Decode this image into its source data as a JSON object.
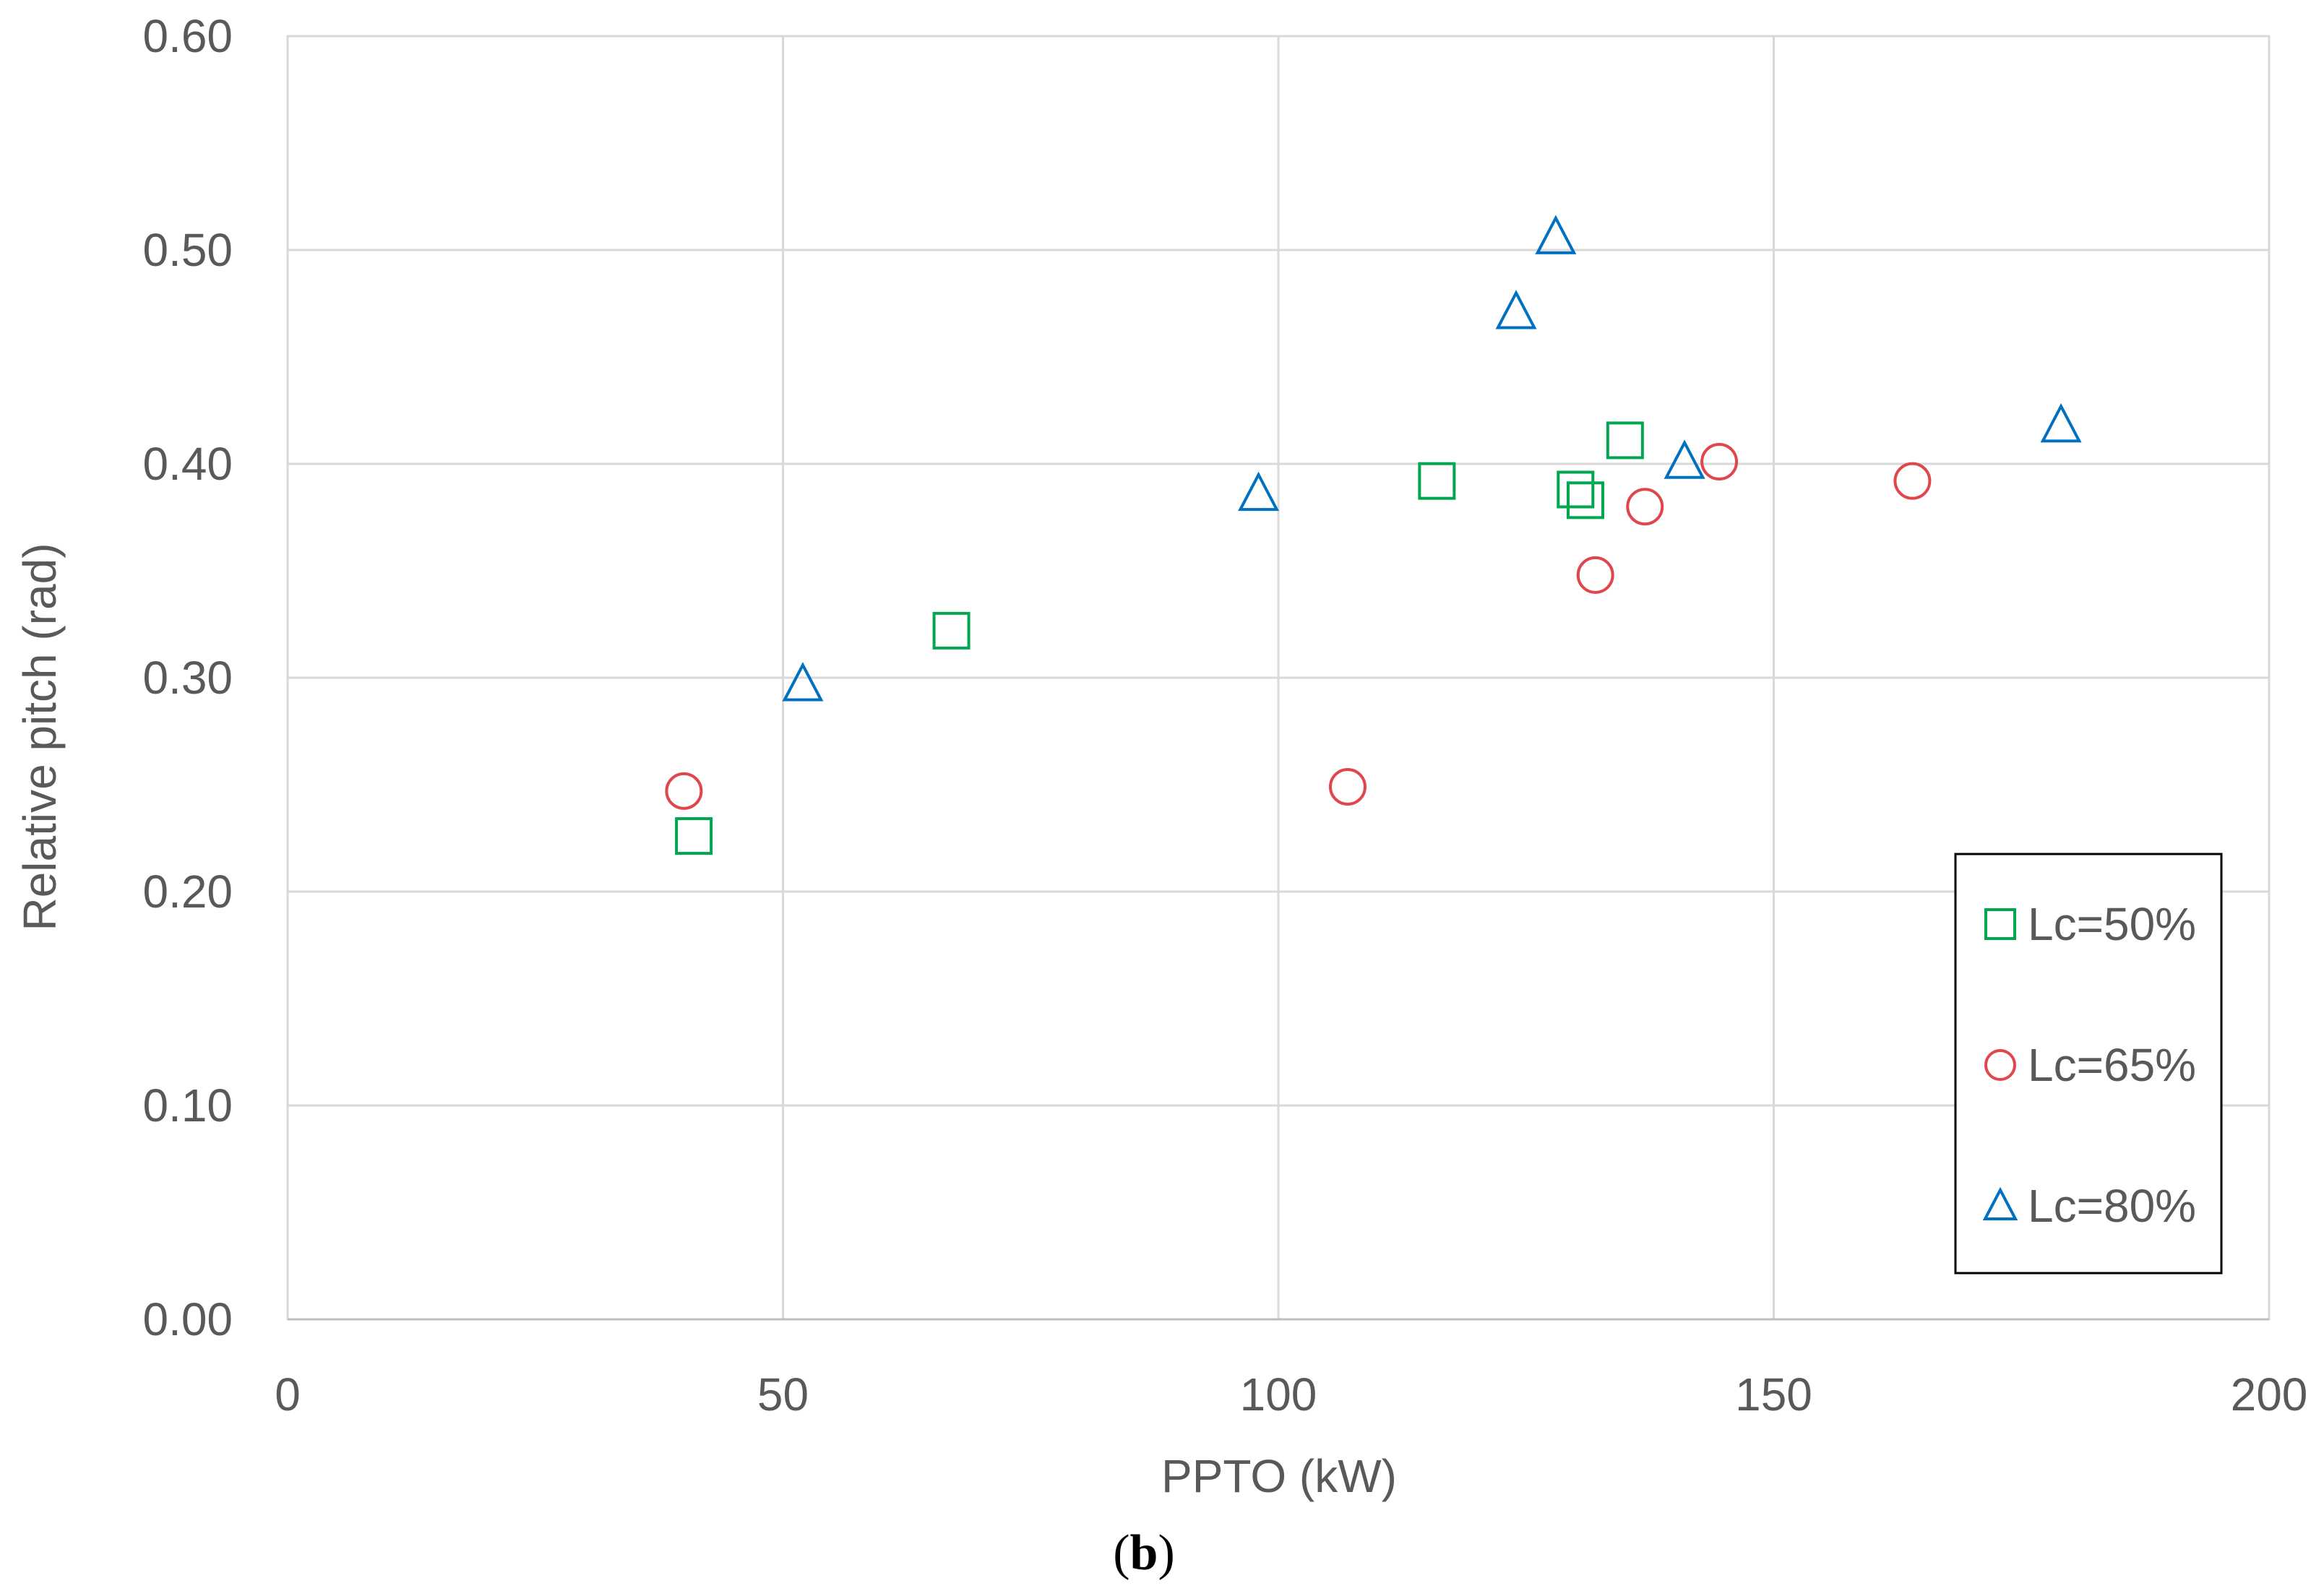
{
  "chart_data": {
    "type": "scatter",
    "title": "",
    "xlabel": "PPTO (kW)",
    "ylabel": "Relative pitch (rad)",
    "xlim": [
      0,
      200
    ],
    "ylim": [
      0,
      0.6
    ],
    "x_ticks": [
      "0",
      "50",
      "100",
      "150",
      "200"
    ],
    "x_tick_values": [
      0,
      50,
      100,
      150,
      200
    ],
    "y_ticks": [
      "0.00",
      "0.10",
      "0.20",
      "0.30",
      "0.40",
      "0.50",
      "0.60"
    ],
    "y_tick_values": [
      0,
      0.1,
      0.2,
      0.3,
      0.4,
      0.5,
      0.6
    ],
    "grid": true,
    "legend_position": "bottom-right",
    "series": [
      {
        "name": "Lc=50%",
        "marker": "square",
        "color": "#00a650",
        "points": [
          {
            "x": 41,
            "y": 0.226
          },
          {
            "x": 67,
            "y": 0.322
          },
          {
            "x": 116,
            "y": 0.392
          },
          {
            "x": 130,
            "y": 0.388
          },
          {
            "x": 131,
            "y": 0.383
          },
          {
            "x": 135,
            "y": 0.411
          }
        ]
      },
      {
        "name": "Lc=65%",
        "marker": "circle",
        "color": "#e0474c",
        "points": [
          {
            "x": 40,
            "y": 0.247
          },
          {
            "x": 107,
            "y": 0.249
          },
          {
            "x": 132,
            "y": 0.348
          },
          {
            "x": 137,
            "y": 0.38
          },
          {
            "x": 144.5,
            "y": 0.401
          },
          {
            "x": 164,
            "y": 0.392
          }
        ]
      },
      {
        "name": "Lc=80%",
        "marker": "triangle",
        "color": "#0070c0",
        "points": [
          {
            "x": 52,
            "y": 0.297
          },
          {
            "x": 98,
            "y": 0.386
          },
          {
            "x": 124,
            "y": 0.471
          },
          {
            "x": 128,
            "y": 0.506
          },
          {
            "x": 141,
            "y": 0.401
          },
          {
            "x": 179,
            "y": 0.418
          }
        ]
      }
    ]
  },
  "caption": {
    "open_paren": "(",
    "letter": "b",
    "close_paren": ")"
  }
}
